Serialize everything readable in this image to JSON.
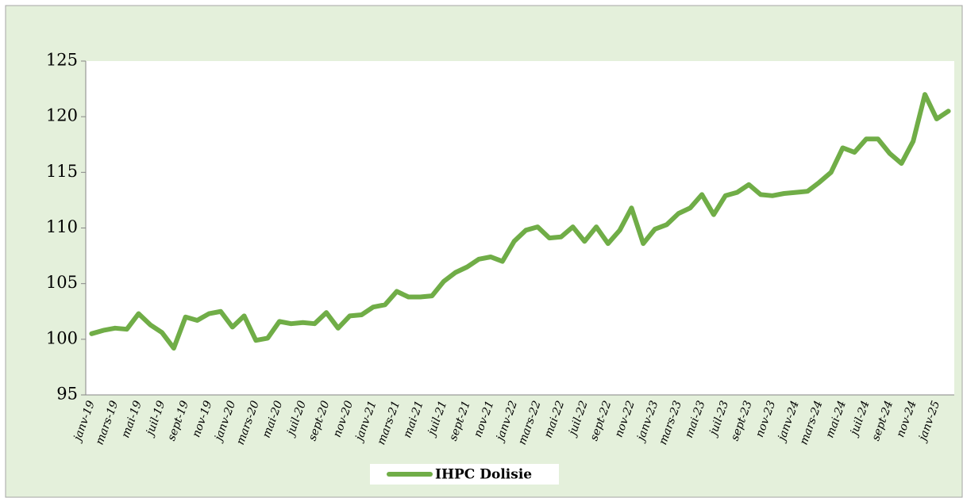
{
  "chart_data": {
    "type": "line",
    "categories": [
      "janv-19",
      null,
      "mars-19",
      null,
      "mai-19",
      null,
      "juil-19",
      null,
      "sept-19",
      null,
      "nov-19",
      null,
      "janv-20",
      null,
      "mars-20",
      null,
      "mai-20",
      null,
      "juil-20",
      null,
      "sept-20",
      null,
      "nov-20",
      null,
      "janv-21",
      null,
      "mars-21",
      null,
      "mai-21",
      null,
      "juil-21",
      null,
      "sept-21",
      null,
      "nov-21",
      null,
      "janv-22",
      null,
      "mars-22",
      null,
      "mai-22",
      null,
      "juil-22",
      null,
      "sept-22",
      null,
      "nov-22",
      null,
      "janv-23",
      null,
      "mars-23",
      null,
      "mai-23",
      null,
      "juil-23",
      null,
      "sept-23",
      null,
      "nov-23",
      null,
      "janv-24",
      null,
      "mars-24",
      null,
      "mai-24",
      null,
      "juil-24",
      null,
      "sept-24",
      null,
      "nov-24",
      null,
      "janv-25",
      null
    ],
    "series": [
      {
        "name": "IHPC Dolisie",
        "color": "#70ad47",
        "values": [
          100.5,
          100.8,
          101.0,
          100.9,
          102.3,
          101.3,
          100.6,
          99.2,
          102.0,
          101.7,
          102.3,
          102.5,
          101.1,
          102.1,
          99.9,
          100.1,
          101.6,
          101.4,
          101.5,
          101.4,
          102.4,
          101.0,
          102.1,
          102.2,
          102.9,
          103.1,
          104.3,
          103.8,
          103.8,
          103.9,
          105.2,
          106.0,
          106.5,
          107.2,
          107.4,
          107.0,
          108.8,
          109.8,
          110.1,
          109.1,
          109.2,
          110.1,
          108.8,
          110.1,
          108.6,
          109.8,
          111.8,
          108.6,
          109.9,
          110.3,
          111.3,
          111.8,
          113.0,
          111.2,
          112.9,
          113.2,
          113.9,
          113.0,
          112.9,
          113.1,
          113.2,
          113.3,
          114.1,
          115.0,
          117.2,
          116.8,
          118.0,
          118.0,
          116.7,
          115.8,
          117.8,
          122.0,
          119.8,
          120.5
        ]
      }
    ],
    "ylim": [
      95,
      125
    ],
    "yticks": [
      95,
      100,
      105,
      110,
      115,
      120,
      125
    ],
    "legend": "bottom"
  }
}
